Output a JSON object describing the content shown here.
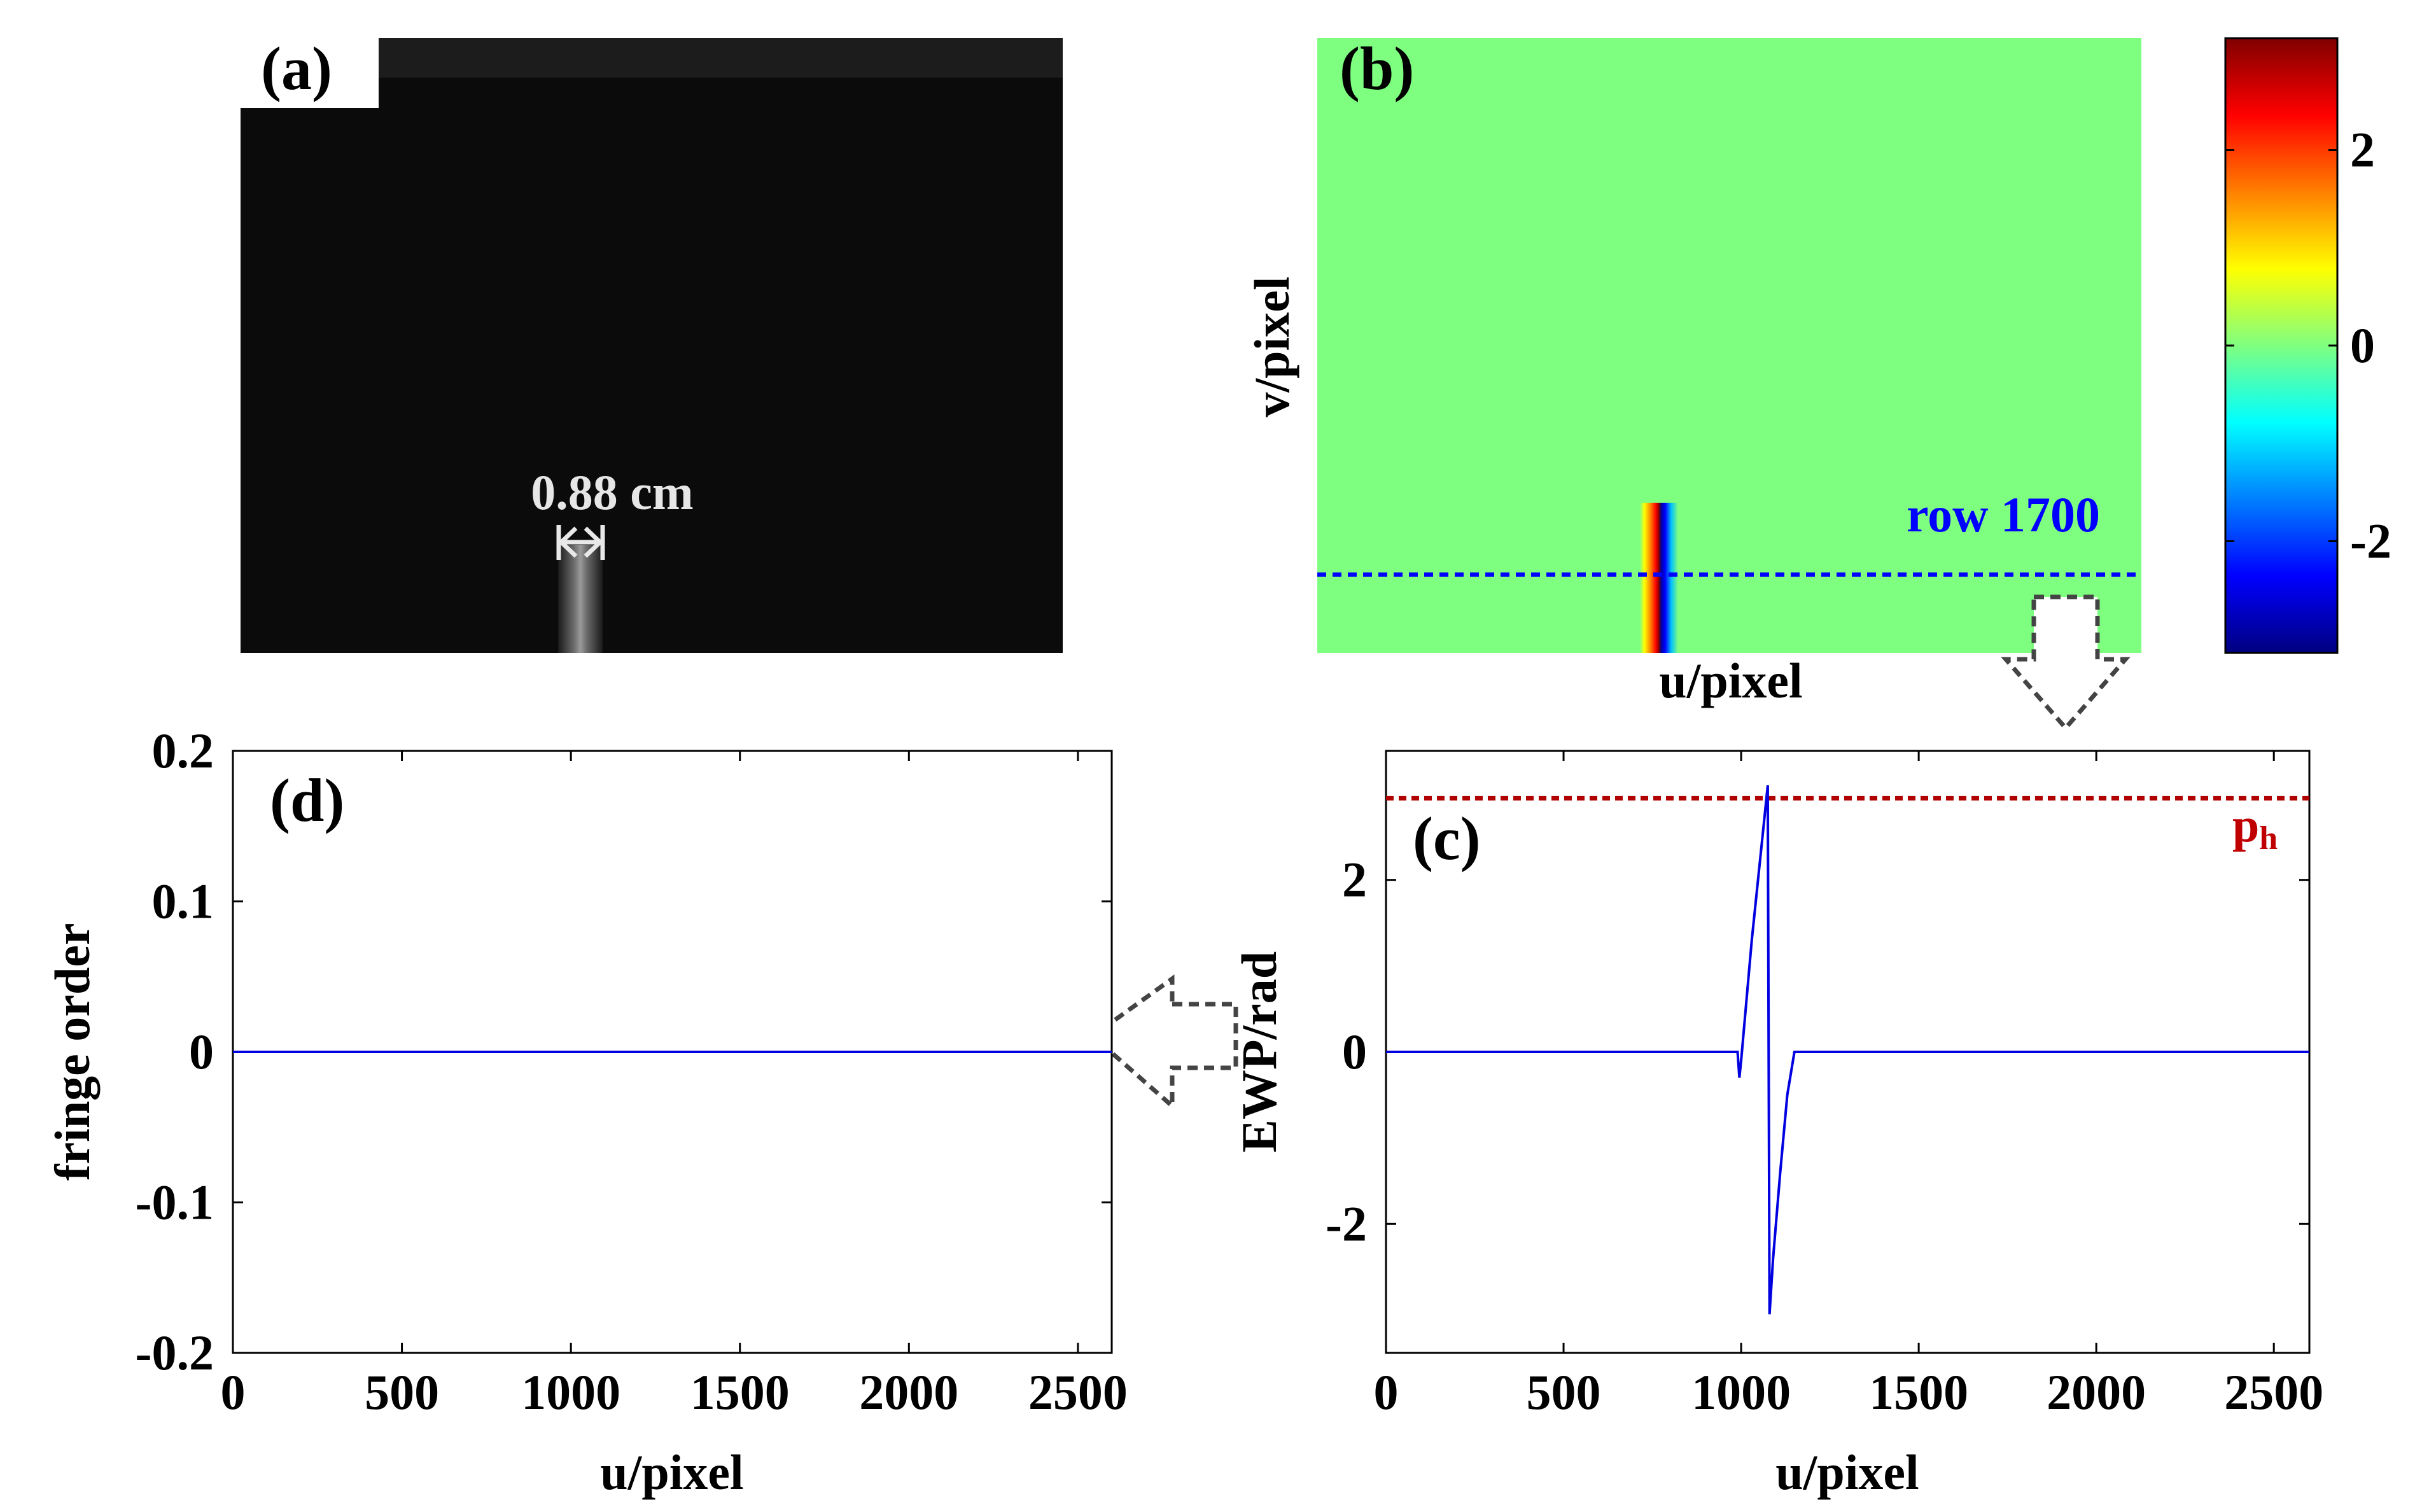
{
  "panels": {
    "a": {
      "label": "(a)",
      "scale_text": "0.88 cm"
    },
    "b": {
      "label": "(b)",
      "xlabel": "u/pixel",
      "ylabel": "v/pixel",
      "row_text": "row 1700"
    },
    "colorbar": {
      "ticks": [
        2,
        0,
        -2
      ],
      "tick_labels": [
        "2",
        "0",
        "-2"
      ],
      "range": [
        -3.1416,
        3.1416
      ]
    }
  },
  "colors": {
    "green_field": "#7fff7f",
    "row_line": "#0000ff",
    "ph_line": "#b00000",
    "ph_text": "#c00000",
    "series": "#0000e0",
    "arrow": "#444444",
    "image_bg": "#0b0b0b"
  },
  "chart_data": [
    {
      "id": "c",
      "type": "line",
      "label": "(c)",
      "xlabel": "u/pixel",
      "ylabel": "EWP/rad",
      "xlim": [
        0,
        2600
      ],
      "ylim": [
        -3.5,
        3.5
      ],
      "xticks": [
        0,
        500,
        1000,
        1500,
        2000,
        2500
      ],
      "yticks": [
        -2,
        0,
        2
      ],
      "hline": {
        "y": 2.95,
        "label_main": "p",
        "label_sub": "h"
      },
      "series": [
        {
          "name": "EWP",
          "x": [
            0,
            990,
            995,
            1000,
            1030,
            1060,
            1075,
            1080,
            1090,
            1110,
            1130,
            1150,
            1160,
            2600
          ],
          "y": [
            0,
            0,
            -0.3,
            -0.1,
            1.3,
            2.5,
            3.1,
            -3.05,
            -2.4,
            -1.4,
            -0.5,
            0,
            0,
            0
          ]
        }
      ]
    },
    {
      "id": "d",
      "type": "line",
      "label": "(d)",
      "xlabel": "u/pixel",
      "ylabel": "fringe order",
      "xlim": [
        0,
        2600
      ],
      "ylim": [
        -0.2,
        0.2
      ],
      "xticks": [
        0,
        500,
        1000,
        1500,
        2000,
        2500
      ],
      "yticks": [
        -0.2,
        -0.1,
        0,
        0.1,
        0.2
      ],
      "series": [
        {
          "name": "fringe order",
          "x": [
            0,
            2600
          ],
          "y": [
            0,
            0
          ]
        }
      ]
    }
  ]
}
